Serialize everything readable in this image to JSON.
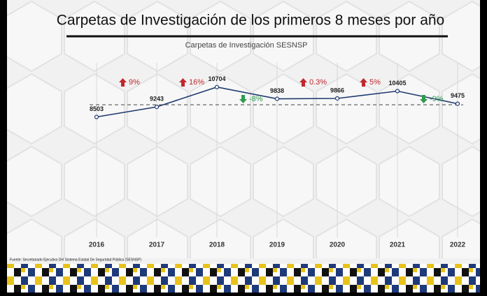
{
  "chart_data": {
    "type": "line",
    "title": "Carpetas de Investigación de los primeros 8 meses por año",
    "subtitle": "Carpetas de Investigación SESNSP",
    "categories": [
      "2016",
      "2017",
      "2018",
      "2019",
      "2020",
      "2021",
      "2022"
    ],
    "values": [
      8503,
      9243,
      10704,
      9838,
      9866,
      10405,
      9475
    ],
    "color": "#1f3a6e",
    "ylim": [
      0,
      13000
    ],
    "reference_value": 9400,
    "annotations": [
      {
        "text": "9%",
        "direction": "up"
      },
      {
        "text": "16%",
        "direction": "up"
      },
      {
        "text": "-8%",
        "direction": "down"
      },
      {
        "text": "0.3%",
        "direction": "up"
      },
      {
        "text": "5%",
        "direction": "up"
      },
      {
        "text": "-9%",
        "direction": "down"
      }
    ],
    "up_color": "#c0282d",
    "down_color": "#2e9a4e",
    "source": "Fuente: Secretariado Ejecutivo Del Sistema Estatal De Seguridad Pública (SESNSP)"
  }
}
